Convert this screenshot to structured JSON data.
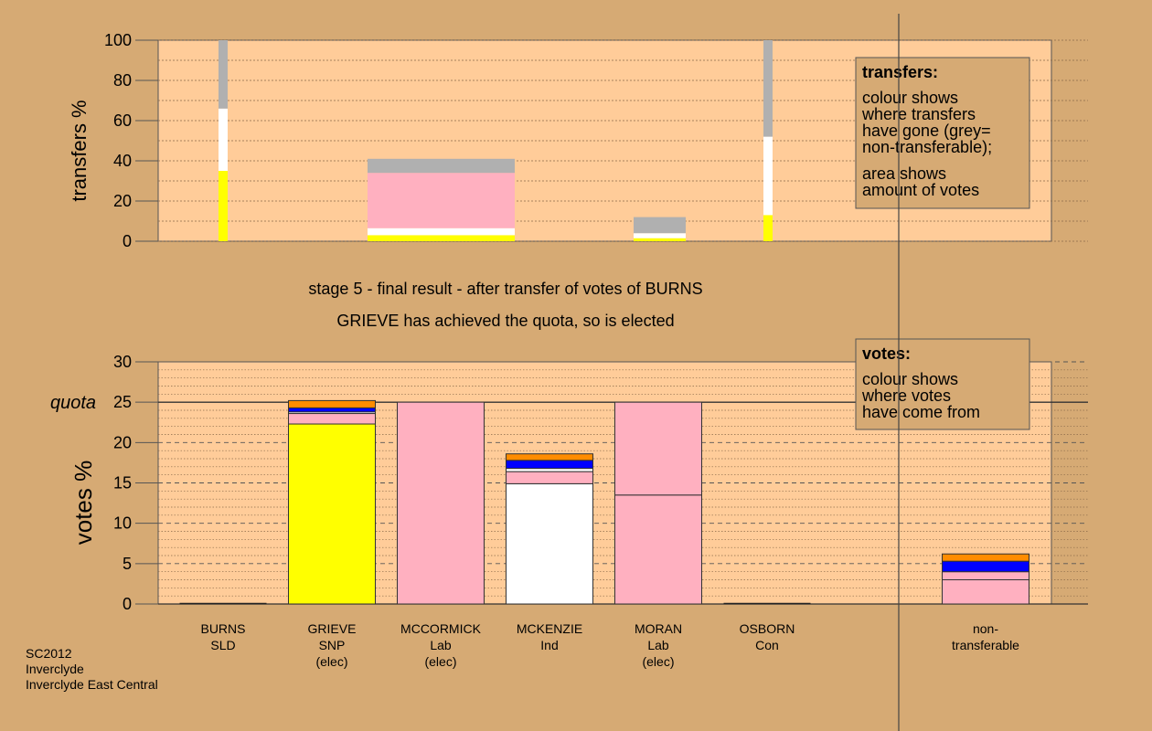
{
  "colors": {
    "background": "#d6aa74",
    "plot_bg": "#ffcc99",
    "legend_bg": "#d6aa74",
    "SNP": "#ffff00",
    "Ind": "#ffffff",
    "Lab": "#ffb0c0",
    "SLD": "#ff8c00",
    "Con": "#0000ff",
    "nontransferable": "#b0b0b0"
  },
  "stage_title": "stage 5 - final result - after transfer of votes of BURNS",
  "stage_subtitle": "GRIEVE has achieved the quota, so is elected",
  "footer": {
    "line1": "SC2012",
    "line2": "Inverclyde",
    "line3": "Inverclyde East Central"
  },
  "chart_data": [
    {
      "type": "bar",
      "name": "transfers",
      "ylabel": "transfers %",
      "ylim": [
        0,
        100
      ],
      "yticks": [
        0,
        20,
        40,
        60,
        80,
        100
      ],
      "legend": {
        "title": "transfers:",
        "lines1": [
          "colour shows",
          "where transfers",
          "have gone (grey=",
          "non-transferable);"
        ],
        "lines2": [
          "area shows",
          "amount of votes"
        ]
      },
      "bars": [
        {
          "candidate": "BURNS",
          "segments": [
            {
              "party": "SNP",
              "value": 35
            },
            {
              "party": "Ind",
              "value": 31
            },
            {
              "party": "nontransferable",
              "value": 34
            }
          ]
        },
        {
          "candidate": "MCCORMICK",
          "segments": [
            {
              "party": "SNP",
              "value": 3
            },
            {
              "party": "Ind",
              "value": 3.5
            },
            {
              "party": "Lab",
              "value": 27.5
            },
            {
              "party": "nontransferable",
              "value": 7
            }
          ]
        },
        {
          "candidate": "MORAN",
          "segments": [
            {
              "party": "SNP",
              "value": 1.5
            },
            {
              "party": "Ind",
              "value": 2.5
            },
            {
              "party": "nontransferable",
              "value": 8
            }
          ]
        },
        {
          "candidate": "OSBORN",
          "segments": [
            {
              "party": "SNP",
              "value": 13
            },
            {
              "party": "Ind",
              "value": 39
            },
            {
              "party": "nontransferable",
              "value": 48
            }
          ]
        }
      ]
    },
    {
      "type": "bar",
      "name": "votes",
      "ylabel": "votes %",
      "ylim": [
        0,
        30
      ],
      "yticks": [
        0,
        5,
        10,
        15,
        20,
        25,
        30
      ],
      "quota": 25,
      "quota_label": "quota",
      "legend": {
        "title": "votes:",
        "lines1": [
          "colour shows",
          "where votes",
          "have come from"
        ]
      },
      "categories": [
        {
          "lines": [
            "BURNS",
            "SLD",
            ""
          ],
          "segments": []
        },
        {
          "lines": [
            "GRIEVE",
            "SNP",
            "(elec)"
          ],
          "segments": [
            {
              "party": "SNP",
              "value": 22.3
            },
            {
              "party": "Lab",
              "value": 1.3
            },
            {
              "party": "Ind",
              "value": 0.2
            },
            {
              "party": "Con",
              "value": 0.5
            },
            {
              "party": "SLD",
              "value": 0.9
            }
          ]
        },
        {
          "lines": [
            "MCCORMICK",
            "Lab",
            "(elec)"
          ],
          "segments": [
            {
              "party": "Lab",
              "value": 25
            }
          ]
        },
        {
          "lines": [
            "MCKENZIE",
            "Ind",
            ""
          ],
          "segments": [
            {
              "party": "Ind",
              "value": 14.9
            },
            {
              "party": "Lab",
              "value": 1.5
            },
            {
              "party": "Ind",
              "value": 0.4
            },
            {
              "party": "Con",
              "value": 1.0
            },
            {
              "party": "SLD",
              "value": 0.8
            }
          ]
        },
        {
          "lines": [
            "MORAN",
            "Lab",
            "(elec)"
          ],
          "segments": [
            {
              "party": "Lab",
              "value": 13.5
            },
            {
              "party": "Lab",
              "value": 11.5
            }
          ]
        },
        {
          "lines": [
            "OSBORN",
            "Con",
            ""
          ],
          "segments": []
        },
        {
          "lines": [
            "",
            "",
            ""
          ],
          "segments": []
        },
        {
          "lines": [
            "non-",
            "transferable",
            ""
          ],
          "segments": [
            {
              "party": "Lab",
              "value": 3.0
            },
            {
              "party": "Lab",
              "value": 1.0
            },
            {
              "party": "Con",
              "value": 1.3
            },
            {
              "party": "SLD",
              "value": 0.9
            }
          ]
        }
      ]
    }
  ]
}
